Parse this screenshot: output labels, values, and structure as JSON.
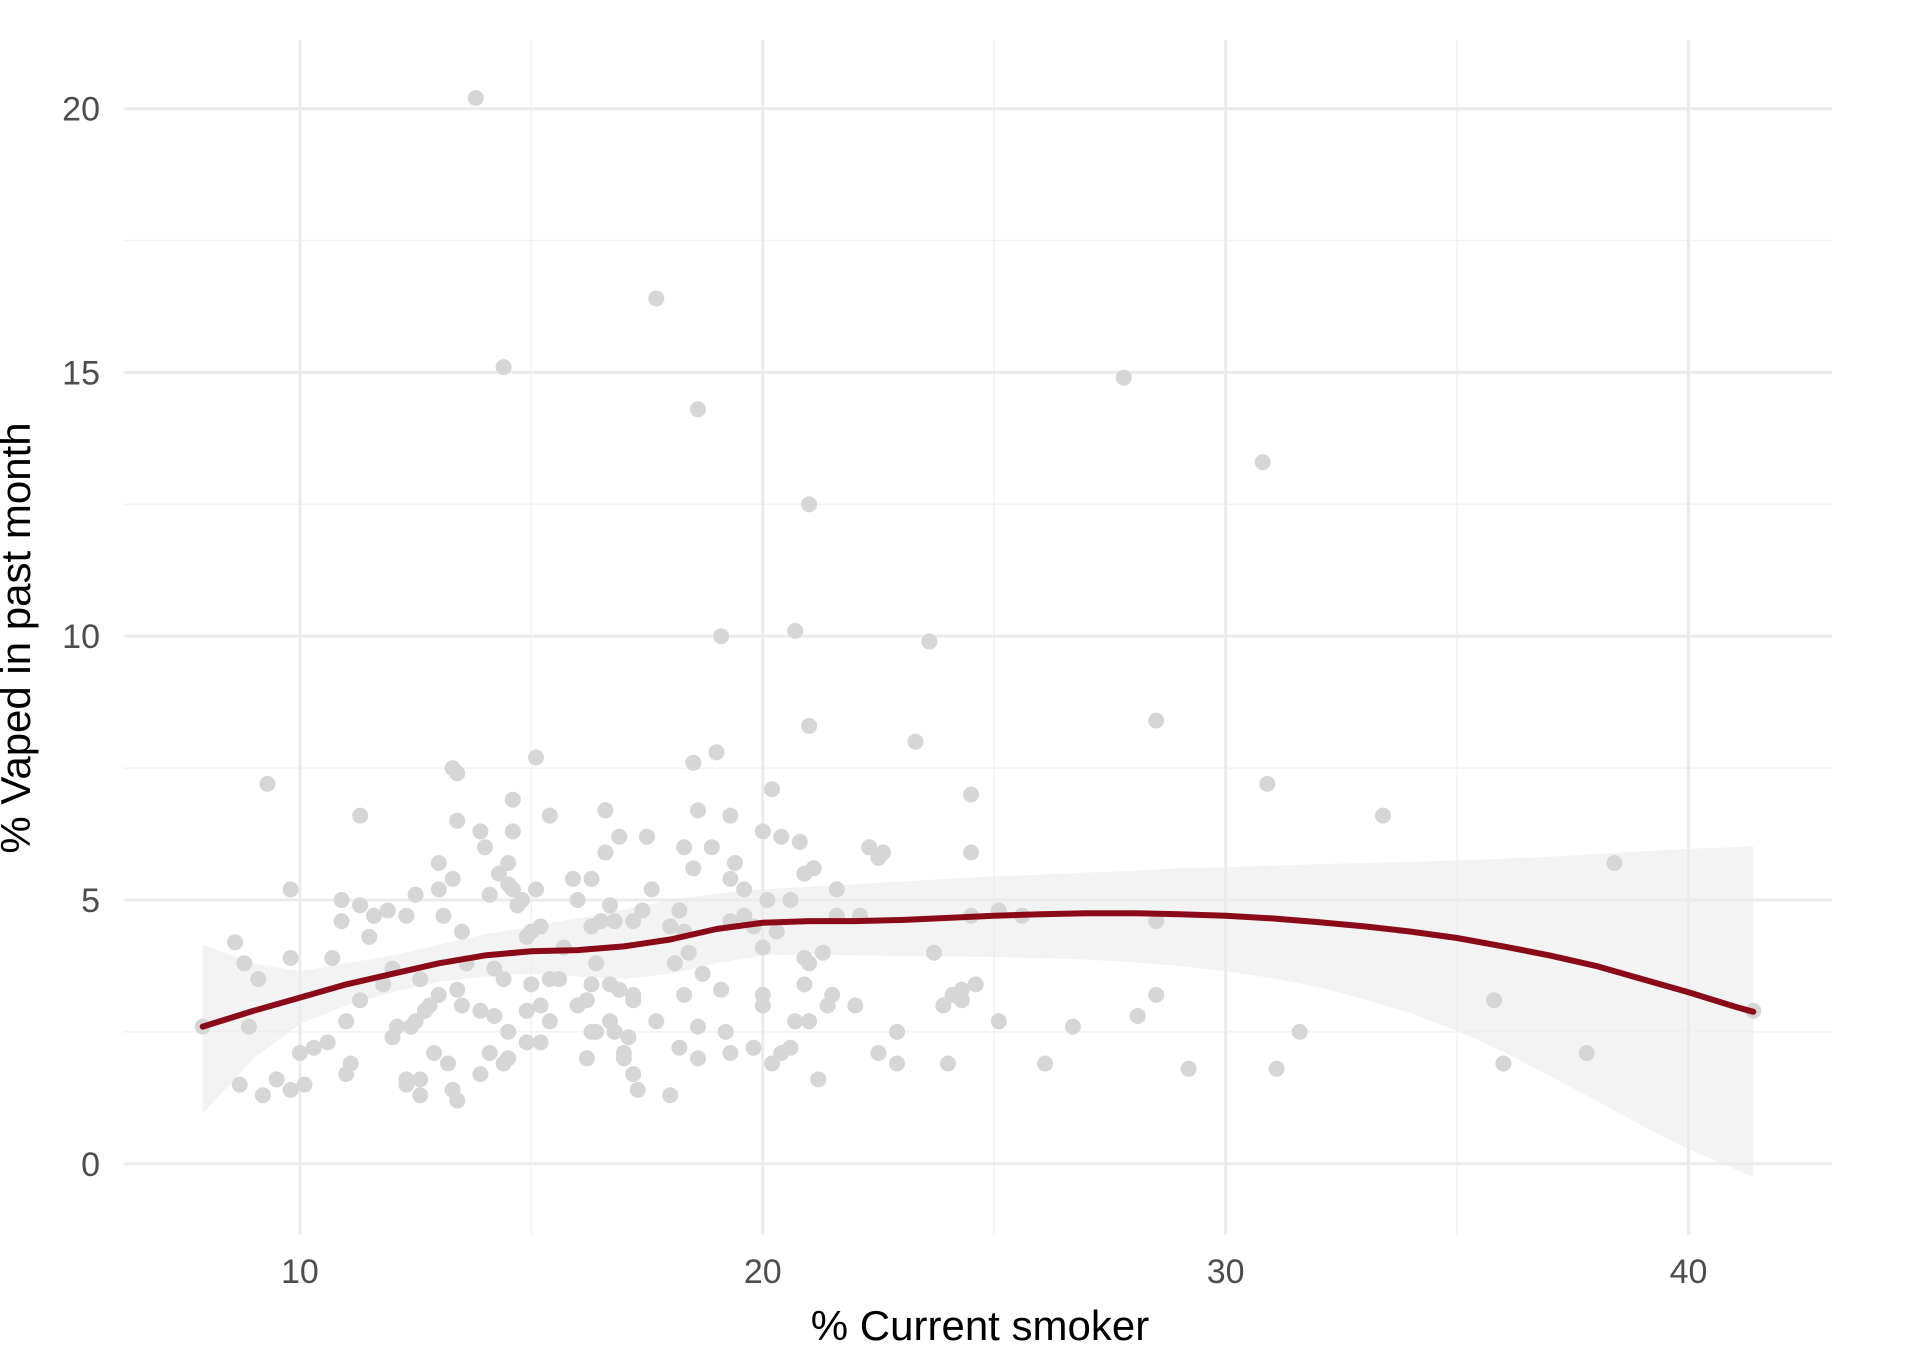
{
  "chart_data": {
    "type": "scatter",
    "title": "",
    "xlabel": "% Current smoker",
    "ylabel": "% Vaped in past month",
    "xlim": [
      6.2,
      43.1
    ],
    "ylim": [
      -1.35,
      21.3
    ],
    "x_ticks": [
      10,
      20,
      30,
      40
    ],
    "x_tick_labels": [
      "10",
      "20",
      "30",
      "40"
    ],
    "y_ticks": [
      0,
      5,
      10,
      15,
      20
    ],
    "y_tick_labels": [
      "0",
      "5",
      "10",
      "15",
      "20"
    ],
    "grid": true,
    "legend": "none",
    "colors": {
      "points": "#d6d6d6",
      "smooth_line": "#8b0a1a",
      "confidence_band": "#ebebeb",
      "grid_major": "#ebebeb",
      "grid_minor": "#f2f2f2",
      "tick_text": "#4d4d4d",
      "axis_title": "#000000"
    },
    "points": [
      [
        13.8,
        20.2
      ],
      [
        17.7,
        16.4
      ],
      [
        14.4,
        15.1
      ],
      [
        18.6,
        14.3
      ],
      [
        27.8,
        14.9
      ],
      [
        30.8,
        13.3
      ],
      [
        21.0,
        12.5
      ],
      [
        19.1,
        10.0
      ],
      [
        20.7,
        10.1
      ],
      [
        23.6,
        9.9
      ],
      [
        21.0,
        8.3
      ],
      [
        28.5,
        8.4
      ],
      [
        23.3,
        8.0
      ],
      [
        19.0,
        7.8
      ],
      [
        15.1,
        7.7
      ],
      [
        18.5,
        7.6
      ],
      [
        13.3,
        7.5
      ],
      [
        13.4,
        7.4
      ],
      [
        9.3,
        7.2
      ],
      [
        30.9,
        7.2
      ],
      [
        20.2,
        7.1
      ],
      [
        24.5,
        7.0
      ],
      [
        14.6,
        6.9
      ],
      [
        16.6,
        6.7
      ],
      [
        33.4,
        6.6
      ],
      [
        11.3,
        6.6
      ],
      [
        15.4,
        6.6
      ],
      [
        18.6,
        6.7
      ],
      [
        19.3,
        6.6
      ],
      [
        13.4,
        6.5
      ],
      [
        20.0,
        6.3
      ],
      [
        13.9,
        6.3
      ],
      [
        14.6,
        6.3
      ],
      [
        17.5,
        6.2
      ],
      [
        16.9,
        6.2
      ],
      [
        20.4,
        6.2
      ],
      [
        20.8,
        6.1
      ],
      [
        18.9,
        6.0
      ],
      [
        18.3,
        6.0
      ],
      [
        14.0,
        6.0
      ],
      [
        22.3,
        6.0
      ],
      [
        22.5,
        5.8
      ],
      [
        22.6,
        5.9
      ],
      [
        24.5,
        5.9
      ],
      [
        16.6,
        5.9
      ],
      [
        38.4,
        5.7
      ],
      [
        13.0,
        5.7
      ],
      [
        19.4,
        5.7
      ],
      [
        14.5,
        5.7
      ],
      [
        21.1,
        5.6
      ],
      [
        18.5,
        5.6
      ],
      [
        14.3,
        5.5
      ],
      [
        15.9,
        5.4
      ],
      [
        20.9,
        5.5
      ],
      [
        13.3,
        5.4
      ],
      [
        19.3,
        5.4
      ],
      [
        16.3,
        5.4
      ],
      [
        14.5,
        5.3
      ],
      [
        14.6,
        5.2
      ],
      [
        17.6,
        5.2
      ],
      [
        13.0,
        5.2
      ],
      [
        15.1,
        5.2
      ],
      [
        19.6,
        5.2
      ],
      [
        9.8,
        5.2
      ],
      [
        12.5,
        5.1
      ],
      [
        21.6,
        5.2
      ],
      [
        14.1,
        5.1
      ],
      [
        10.9,
        5.0
      ],
      [
        20.1,
        5.0
      ],
      [
        16.0,
        5.0
      ],
      [
        14.7,
        4.9
      ],
      [
        11.3,
        4.9
      ],
      [
        16.7,
        4.9
      ],
      [
        14.8,
        5.0
      ],
      [
        20.6,
        5.0
      ],
      [
        17.4,
        4.8
      ],
      [
        11.6,
        4.7
      ],
      [
        11.9,
        4.8
      ],
      [
        18.2,
        4.8
      ],
      [
        12.3,
        4.7
      ],
      [
        13.1,
        4.7
      ],
      [
        19.6,
        4.7
      ],
      [
        21.6,
        4.7
      ],
      [
        22.1,
        4.7
      ],
      [
        24.5,
        4.7
      ],
      [
        25.1,
        4.8
      ],
      [
        25.6,
        4.7
      ],
      [
        28.5,
        4.6
      ],
      [
        10.9,
        4.6
      ],
      [
        16.5,
        4.6
      ],
      [
        17.2,
        4.6
      ],
      [
        16.8,
        4.6
      ],
      [
        19.3,
        4.6
      ],
      [
        18.0,
        4.5
      ],
      [
        15.2,
        4.5
      ],
      [
        16.3,
        4.5
      ],
      [
        20.3,
        4.4
      ],
      [
        13.5,
        4.4
      ],
      [
        15.0,
        4.4
      ],
      [
        18.3,
        4.4
      ],
      [
        14.9,
        4.3
      ],
      [
        11.5,
        4.3
      ],
      [
        8.6,
        4.2
      ],
      [
        18.4,
        4.0
      ],
      [
        21.3,
        4.0
      ],
      [
        10.7,
        3.9
      ],
      [
        23.7,
        4.0
      ],
      [
        9.8,
        3.9
      ],
      [
        16.4,
        3.8
      ],
      [
        18.1,
        3.8
      ],
      [
        20.9,
        3.9
      ],
      [
        21.0,
        3.8
      ],
      [
        13.6,
        3.8
      ],
      [
        14.2,
        3.7
      ],
      [
        8.8,
        3.8
      ],
      [
        12.0,
        3.7
      ],
      [
        14.4,
        3.5
      ],
      [
        15.4,
        3.5
      ],
      [
        15.0,
        3.4
      ],
      [
        15.6,
        3.5
      ],
      [
        16.3,
        3.4
      ],
      [
        16.7,
        3.4
      ],
      [
        11.8,
        3.4
      ],
      [
        12.6,
        3.5
      ],
      [
        9.1,
        3.5
      ],
      [
        24.6,
        3.4
      ],
      [
        18.7,
        3.6
      ],
      [
        20.9,
        3.4
      ],
      [
        13.4,
        3.3
      ],
      [
        16.9,
        3.3
      ],
      [
        17.2,
        3.2
      ],
      [
        19.1,
        3.3
      ],
      [
        20.0,
        3.2
      ],
      [
        13.0,
        3.2
      ],
      [
        18.3,
        3.2
      ],
      [
        21.5,
        3.2
      ],
      [
        24.1,
        3.2
      ],
      [
        24.3,
        3.3
      ],
      [
        28.5,
        3.2
      ],
      [
        35.8,
        3.1
      ],
      [
        11.3,
        3.1
      ],
      [
        15.2,
        3.0
      ],
      [
        16.2,
        3.1
      ],
      [
        17.2,
        3.1
      ],
      [
        21.4,
        3.0
      ],
      [
        20.0,
        3.0
      ],
      [
        23.9,
        3.0
      ],
      [
        24.3,
        3.1
      ],
      [
        13.5,
        3.0
      ],
      [
        14.9,
        2.9
      ],
      [
        16.0,
        3.0
      ],
      [
        13.9,
        2.9
      ],
      [
        14.2,
        2.8
      ],
      [
        12.7,
        2.9
      ],
      [
        15.4,
        2.7
      ],
      [
        12.5,
        2.7
      ],
      [
        11.0,
        2.7
      ],
      [
        16.7,
        2.7
      ],
      [
        17.7,
        2.7
      ],
      [
        18.6,
        2.6
      ],
      [
        20.7,
        2.7
      ],
      [
        21.0,
        2.7
      ],
      [
        25.1,
        2.7
      ],
      [
        26.7,
        2.6
      ],
      [
        28.1,
        2.8
      ],
      [
        12.1,
        2.6
      ],
      [
        16.4,
        2.5
      ],
      [
        16.8,
        2.5
      ],
      [
        19.2,
        2.5
      ],
      [
        22.9,
        2.5
      ],
      [
        8.9,
        2.6
      ],
      [
        12.4,
        2.6
      ],
      [
        14.5,
        2.5
      ],
      [
        17.1,
        2.4
      ],
      [
        16.3,
        2.5
      ],
      [
        15.2,
        2.3
      ],
      [
        12.0,
        2.4
      ],
      [
        14.9,
        2.3
      ],
      [
        19.8,
        2.2
      ],
      [
        20.6,
        2.2
      ],
      [
        20.4,
        2.1
      ],
      [
        17.0,
        2.1
      ],
      [
        18.2,
        2.2
      ],
      [
        19.3,
        2.1
      ],
      [
        22.5,
        2.1
      ],
      [
        10.0,
        2.1
      ],
      [
        10.3,
        2.2
      ],
      [
        12.9,
        2.1
      ],
      [
        14.1,
        2.1
      ],
      [
        14.5,
        2.0
      ],
      [
        16.2,
        2.0
      ],
      [
        17.0,
        2.0
      ],
      [
        18.6,
        2.0
      ],
      [
        20.2,
        1.9
      ],
      [
        24.0,
        1.9
      ],
      [
        26.1,
        1.9
      ],
      [
        36.0,
        1.9
      ],
      [
        37.8,
        2.1
      ],
      [
        31.6,
        2.5
      ],
      [
        31.1,
        1.8
      ],
      [
        22.9,
        1.9
      ],
      [
        29.2,
        1.8
      ],
      [
        13.2,
        1.9
      ],
      [
        14.4,
        1.9
      ],
      [
        17.2,
        1.7
      ],
      [
        11.0,
        1.7
      ],
      [
        13.9,
        1.7
      ],
      [
        9.5,
        1.6
      ],
      [
        10.1,
        1.5
      ],
      [
        12.3,
        1.6
      ],
      [
        12.6,
        1.6
      ],
      [
        21.2,
        1.6
      ],
      [
        8.7,
        1.5
      ],
      [
        9.8,
        1.4
      ],
      [
        12.3,
        1.5
      ],
      [
        13.3,
        1.4
      ],
      [
        9.2,
        1.3
      ],
      [
        12.6,
        1.3
      ],
      [
        13.4,
        1.2
      ],
      [
        17.3,
        1.4
      ],
      [
        18.0,
        1.3
      ],
      [
        7.9,
        2.6
      ],
      [
        41.4,
        2.9
      ],
      [
        20.0,
        4.1
      ],
      [
        15.7,
        4.1
      ],
      [
        10.6,
        2.3
      ],
      [
        11.1,
        1.9
      ],
      [
        19.8,
        4.5
      ],
      [
        22.0,
        3.0
      ],
      [
        12.8,
        3.0
      ]
    ],
    "smooth_line": [
      [
        7.9,
        2.6
      ],
      [
        9,
        2.9
      ],
      [
        10,
        3.15
      ],
      [
        11,
        3.4
      ],
      [
        12,
        3.6
      ],
      [
        13,
        3.8
      ],
      [
        14,
        3.95
      ],
      [
        15,
        4.03
      ],
      [
        16,
        4.05
      ],
      [
        17,
        4.12
      ],
      [
        18,
        4.25
      ],
      [
        19,
        4.45
      ],
      [
        20,
        4.57
      ],
      [
        21,
        4.6
      ],
      [
        22,
        4.6
      ],
      [
        23,
        4.62
      ],
      [
        24,
        4.66
      ],
      [
        25,
        4.7
      ],
      [
        26,
        4.73
      ],
      [
        27,
        4.75
      ],
      [
        28,
        4.75
      ],
      [
        29,
        4.73
      ],
      [
        30,
        4.7
      ],
      [
        31,
        4.65
      ],
      [
        32,
        4.58
      ],
      [
        33,
        4.5
      ],
      [
        34,
        4.4
      ],
      [
        35,
        4.28
      ],
      [
        36,
        4.12
      ],
      [
        37,
        3.95
      ],
      [
        38,
        3.75
      ],
      [
        39,
        3.5
      ],
      [
        40,
        3.25
      ],
      [
        41,
        2.98
      ],
      [
        41.4,
        2.88
      ]
    ],
    "confidence_band_upper": [
      [
        7.9,
        4.15
      ],
      [
        9,
        3.8
      ],
      [
        10,
        3.65
      ],
      [
        11,
        3.8
      ],
      [
        12,
        3.95
      ],
      [
        13,
        4.15
      ],
      [
        14,
        4.35
      ],
      [
        15,
        4.5
      ],
      [
        16,
        4.65
      ],
      [
        17,
        4.82
      ],
      [
        18,
        5.0
      ],
      [
        19,
        5.12
      ],
      [
        20,
        5.2
      ],
      [
        21,
        5.25
      ],
      [
        22,
        5.3
      ],
      [
        23,
        5.35
      ],
      [
        24,
        5.4
      ],
      [
        25,
        5.45
      ],
      [
        26,
        5.48
      ],
      [
        27,
        5.52
      ],
      [
        28,
        5.55
      ],
      [
        29,
        5.6
      ],
      [
        30,
        5.62
      ],
      [
        31,
        5.65
      ],
      [
        32,
        5.68
      ],
      [
        33,
        5.7
      ],
      [
        34,
        5.72
      ],
      [
        35,
        5.75
      ],
      [
        36,
        5.78
      ],
      [
        37,
        5.82
      ],
      [
        38,
        5.87
      ],
      [
        39,
        5.92
      ],
      [
        40,
        5.97
      ],
      [
        41,
        6.0
      ],
      [
        41.4,
        6.02
      ]
    ],
    "confidence_band_lower": [
      [
        7.9,
        0.95
      ],
      [
        9,
        2.0
      ],
      [
        10,
        2.65
      ],
      [
        11,
        3.0
      ],
      [
        12,
        3.25
      ],
      [
        13,
        3.45
      ],
      [
        14,
        3.55
      ],
      [
        15,
        3.6
      ],
      [
        16,
        3.55
      ],
      [
        17,
        3.5
      ],
      [
        18,
        3.6
      ],
      [
        19,
        3.8
      ],
      [
        20,
        3.95
      ],
      [
        21,
        3.97
      ],
      [
        22,
        3.95
      ],
      [
        23,
        3.94
      ],
      [
        24,
        3.93
      ],
      [
        25,
        3.92
      ],
      [
        26,
        3.9
      ],
      [
        27,
        3.87
      ],
      [
        28,
        3.82
      ],
      [
        29,
        3.75
      ],
      [
        30,
        3.65
      ],
      [
        31,
        3.52
      ],
      [
        32,
        3.35
      ],
      [
        33,
        3.12
      ],
      [
        34,
        2.85
      ],
      [
        35,
        2.52
      ],
      [
        36,
        2.12
      ],
      [
        37,
        1.67
      ],
      [
        38,
        1.2
      ],
      [
        39,
        0.72
      ],
      [
        40,
        0.28
      ],
      [
        41,
        -0.1
      ],
      [
        41.4,
        -0.25
      ]
    ]
  }
}
